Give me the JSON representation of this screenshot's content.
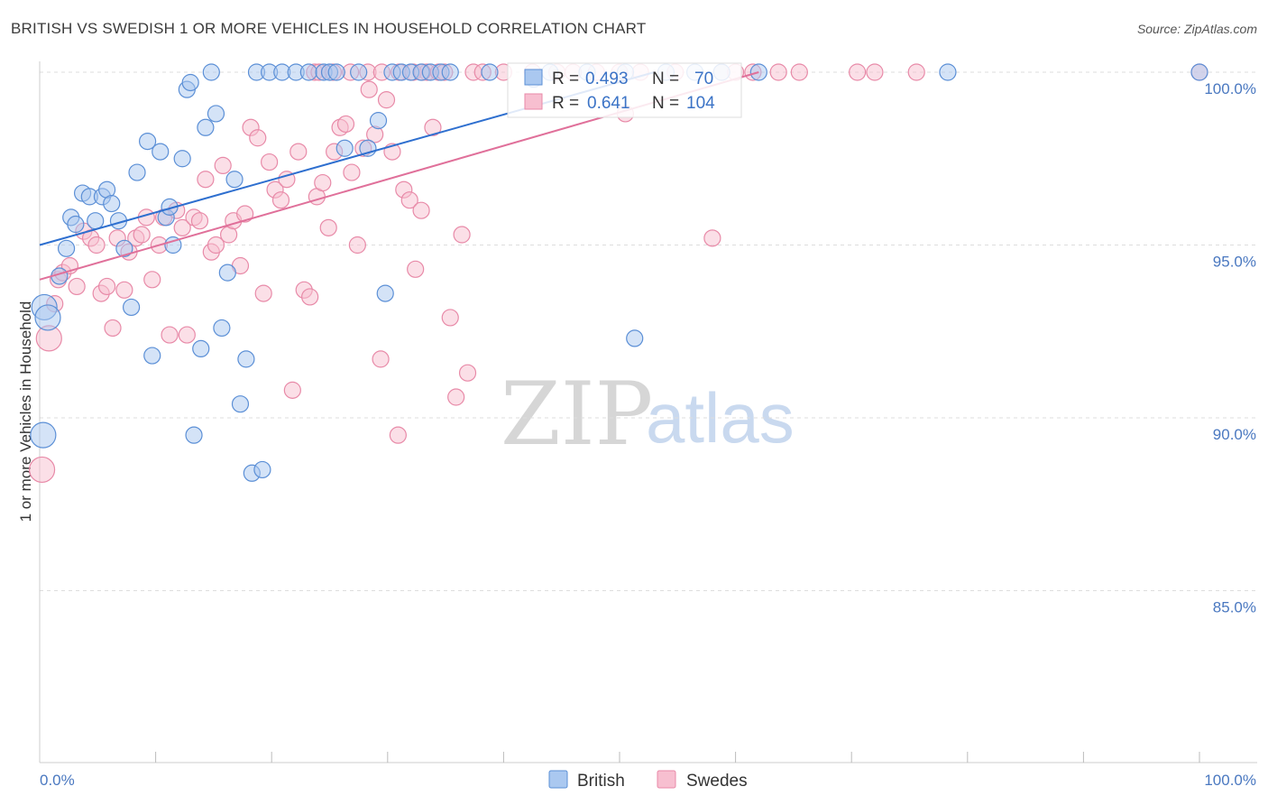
{
  "header": {
    "title": "BRITISH VS SWEDISH 1 OR MORE VEHICLES IN HOUSEHOLD CORRELATION CHART",
    "source": "Source: ZipAtlas.com"
  },
  "watermark": {
    "zip": "ZIP",
    "atlas": "atlas"
  },
  "colors": {
    "british_fill": "#aac8f0",
    "british_stroke": "#5b8fd6",
    "british_line": "#2e6fcf",
    "swedes_fill": "#f7bfd0",
    "swedes_stroke": "#e88aa8",
    "swedes_line": "#e0709a",
    "grid": "#dddddd",
    "label_blue": "#4a78c0"
  },
  "legend": {
    "british": {
      "r_label": "R =",
      "r_value": "0.493",
      "n_label": "N =",
      "n_value": "70"
    },
    "swedes": {
      "r_label": "R =",
      "r_value": "0.641",
      "n_label": "N =",
      "n_value": "104"
    }
  },
  "bottom_legend": {
    "british": "British",
    "swedes": "Swedes"
  },
  "chart_data": {
    "type": "scatter",
    "title": "BRITISH VS SWEDISH 1 OR MORE VEHICLES IN HOUSEHOLD CORRELATION CHART",
    "xlabel": "",
    "ylabel": "1 or more Vehicles in Household",
    "xlim": [
      0,
      100
    ],
    "ylim": [
      80.0,
      100.8
    ],
    "x_tick_labels": [
      "0.0%",
      "100.0%"
    ],
    "y_ticks": [
      100,
      95,
      90,
      85
    ],
    "y_tick_labels": [
      "100.0%",
      "95.0%",
      "90.0%",
      "85.0%"
    ],
    "grid": true,
    "series": [
      {
        "name": "British",
        "r": 0.493,
        "n": 70,
        "trend": {
          "x": [
            0,
            53
          ],
          "y": [
            95.0,
            100.0
          ]
        },
        "points": [
          [
            0.4,
            93.2
          ],
          [
            0.7,
            92.9
          ],
          [
            0.3,
            89.5
          ],
          [
            1.7,
            94.1
          ],
          [
            2.3,
            94.9
          ],
          [
            2.7,
            95.8
          ],
          [
            3.1,
            95.6
          ],
          [
            3.7,
            96.5
          ],
          [
            4.3,
            96.4
          ],
          [
            4.8,
            95.7
          ],
          [
            5.4,
            96.4
          ],
          [
            5.8,
            96.6
          ],
          [
            6.2,
            96.2
          ],
          [
            6.8,
            95.7
          ],
          [
            7.3,
            94.9
          ],
          [
            7.9,
            93.2
          ],
          [
            8.4,
            97.1
          ],
          [
            9.3,
            98.0
          ],
          [
            9.7,
            91.8
          ],
          [
            10.4,
            97.7
          ],
          [
            10.9,
            95.8
          ],
          [
            11.2,
            96.1
          ],
          [
            11.5,
            95.0
          ],
          [
            12.3,
            97.5
          ],
          [
            12.7,
            99.5
          ],
          [
            13.0,
            99.7
          ],
          [
            13.3,
            89.5
          ],
          [
            13.9,
            92.0
          ],
          [
            14.3,
            98.4
          ],
          [
            15.2,
            98.8
          ],
          [
            15.7,
            92.6
          ],
          [
            16.2,
            94.2
          ],
          [
            16.8,
            96.9
          ],
          [
            17.3,
            90.4
          ],
          [
            17.8,
            91.7
          ],
          [
            18.3,
            88.4
          ],
          [
            19.2,
            88.5
          ],
          [
            14.8,
            100.0
          ],
          [
            18.7,
            100.0
          ],
          [
            19.8,
            100.0
          ],
          [
            20.9,
            100.0
          ],
          [
            22.1,
            100.0
          ],
          [
            23.2,
            100.0
          ],
          [
            24.5,
            100.0
          ],
          [
            25.0,
            100.0
          ],
          [
            25.6,
            100.0
          ],
          [
            26.3,
            97.8
          ],
          [
            27.5,
            100.0
          ],
          [
            28.3,
            97.8
          ],
          [
            29.2,
            98.6
          ],
          [
            29.8,
            93.6
          ],
          [
            30.4,
            100.0
          ],
          [
            31.2,
            100.0
          ],
          [
            32.0,
            100.0
          ],
          [
            32.9,
            100.0
          ],
          [
            33.7,
            100.0
          ],
          [
            34.6,
            100.0
          ],
          [
            35.4,
            100.0
          ],
          [
            38.8,
            100.0
          ],
          [
            42.6,
            99.8
          ],
          [
            44.0,
            100.0
          ],
          [
            47.2,
            100.0
          ],
          [
            50.5,
            100.0
          ],
          [
            51.3,
            92.3
          ],
          [
            54.0,
            100.0
          ],
          [
            56.5,
            100.0
          ],
          [
            58.8,
            100.0
          ],
          [
            62.0,
            100.0
          ],
          [
            78.3,
            100.0
          ],
          [
            100.0,
            100.0
          ]
        ]
      },
      {
        "name": "Swedes",
        "r": 0.641,
        "n": 104,
        "trend": {
          "x": [
            0,
            62
          ],
          "y": [
            94.0,
            100.0
          ]
        },
        "points": [
          [
            0.2,
            88.5
          ],
          [
            0.8,
            92.3
          ],
          [
            1.3,
            93.3
          ],
          [
            1.6,
            94.0
          ],
          [
            2.0,
            94.2
          ],
          [
            2.6,
            94.4
          ],
          [
            3.2,
            93.8
          ],
          [
            3.8,
            95.4
          ],
          [
            4.4,
            95.2
          ],
          [
            4.9,
            95.0
          ],
          [
            5.3,
            93.6
          ],
          [
            5.8,
            93.8
          ],
          [
            6.3,
            92.6
          ],
          [
            6.7,
            95.2
          ],
          [
            7.3,
            93.7
          ],
          [
            7.7,
            94.8
          ],
          [
            8.3,
            95.2
          ],
          [
            8.8,
            95.3
          ],
          [
            9.2,
            95.8
          ],
          [
            9.7,
            94.0
          ],
          [
            10.3,
            95.0
          ],
          [
            10.7,
            95.8
          ],
          [
            11.2,
            92.4
          ],
          [
            11.8,
            96.0
          ],
          [
            12.3,
            95.5
          ],
          [
            12.7,
            92.4
          ],
          [
            13.3,
            95.8
          ],
          [
            13.8,
            95.7
          ],
          [
            14.3,
            96.9
          ],
          [
            14.8,
            94.8
          ],
          [
            15.2,
            95.0
          ],
          [
            15.8,
            97.3
          ],
          [
            16.3,
            95.3
          ],
          [
            16.7,
            95.7
          ],
          [
            17.3,
            94.4
          ],
          [
            17.7,
            95.9
          ],
          [
            18.2,
            98.4
          ],
          [
            18.8,
            98.1
          ],
          [
            19.3,
            93.6
          ],
          [
            19.8,
            97.4
          ],
          [
            20.3,
            96.6
          ],
          [
            20.8,
            96.3
          ],
          [
            21.3,
            96.9
          ],
          [
            21.8,
            90.8
          ],
          [
            22.3,
            97.7
          ],
          [
            22.8,
            93.7
          ],
          [
            23.3,
            93.5
          ],
          [
            23.9,
            96.4
          ],
          [
            24.4,
            96.8
          ],
          [
            24.9,
            95.5
          ],
          [
            25.4,
            97.7
          ],
          [
            25.9,
            98.4
          ],
          [
            26.4,
            98.5
          ],
          [
            26.9,
            97.1
          ],
          [
            27.4,
            95.0
          ],
          [
            27.9,
            97.8
          ],
          [
            28.4,
            99.5
          ],
          [
            28.9,
            98.2
          ],
          [
            29.4,
            91.7
          ],
          [
            29.9,
            99.2
          ],
          [
            30.4,
            97.7
          ],
          [
            30.9,
            89.5
          ],
          [
            31.4,
            96.6
          ],
          [
            31.9,
            96.3
          ],
          [
            32.4,
            94.3
          ],
          [
            32.9,
            96.0
          ],
          [
            33.4,
            100.0
          ],
          [
            33.9,
            98.4
          ],
          [
            34.4,
            100.0
          ],
          [
            34.9,
            100.0
          ],
          [
            35.4,
            92.9
          ],
          [
            35.9,
            90.6
          ],
          [
            36.4,
            95.3
          ],
          [
            36.9,
            91.3
          ],
          [
            37.4,
            100.0
          ],
          [
            23.7,
            100.0
          ],
          [
            24.1,
            100.0
          ],
          [
            25.3,
            100.0
          ],
          [
            26.8,
            100.0
          ],
          [
            28.3,
            100.0
          ],
          [
            29.5,
            100.0
          ],
          [
            31.0,
            100.0
          ],
          [
            32.2,
            100.0
          ],
          [
            33.0,
            100.0
          ],
          [
            38.2,
            100.0
          ],
          [
            40.0,
            100.0
          ],
          [
            42.5,
            100.0
          ],
          [
            44.6,
            100.0
          ],
          [
            46.0,
            100.0
          ],
          [
            48.0,
            100.0
          ],
          [
            50.0,
            100.0
          ],
          [
            50.5,
            98.8
          ],
          [
            51.8,
            100.0
          ],
          [
            54.8,
            100.0
          ],
          [
            58.0,
            95.2
          ],
          [
            58.8,
            100.0
          ],
          [
            60.0,
            100.0
          ],
          [
            61.5,
            100.0
          ],
          [
            63.7,
            100.0
          ],
          [
            65.5,
            100.0
          ],
          [
            70.5,
            100.0
          ],
          [
            72.0,
            100.0
          ],
          [
            75.6,
            100.0
          ],
          [
            100.0,
            100.0
          ]
        ]
      }
    ]
  }
}
